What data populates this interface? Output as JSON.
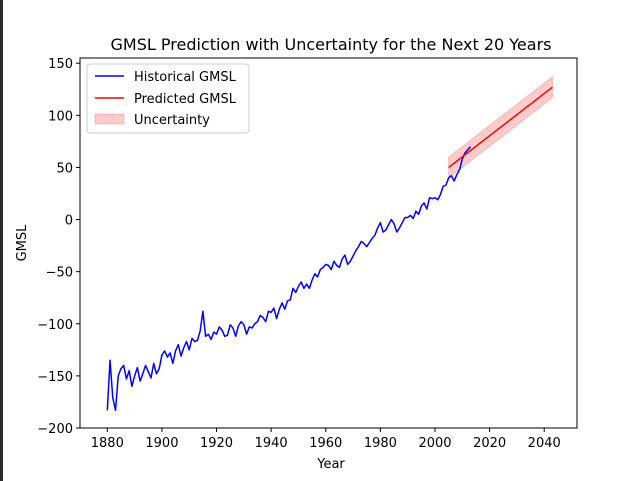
{
  "chart_data": {
    "type": "line",
    "title": "GMSL Prediction with Uncertainty for the Next 20 Years",
    "xlabel": "Year",
    "ylabel": "GMSL",
    "xlim": [
      1870,
      2052
    ],
    "ylim": [
      -200,
      155
    ],
    "xticks": [
      1880,
      1900,
      1920,
      1940,
      1960,
      1980,
      2000,
      2020,
      2040
    ],
    "yticks": [
      -200,
      -150,
      -100,
      -50,
      0,
      50,
      100,
      150
    ],
    "legend": "top-left",
    "grid": false,
    "series": [
      {
        "name": "Historical GMSL",
        "color": "#0000ff",
        "x": [
          1880,
          1881,
          1882,
          1883,
          1884,
          1885,
          1886,
          1887,
          1888,
          1889,
          1890,
          1891,
          1892,
          1893,
          1894,
          1895,
          1896,
          1897,
          1898,
          1899,
          1900,
          1901,
          1902,
          1903,
          1904,
          1905,
          1906,
          1907,
          1908,
          1909,
          1910,
          1911,
          1912,
          1913,
          1914,
          1915,
          1916,
          1917,
          1918,
          1919,
          1920,
          1921,
          1922,
          1923,
          1924,
          1925,
          1926,
          1927,
          1928,
          1929,
          1930,
          1931,
          1932,
          1933,
          1934,
          1935,
          1936,
          1937,
          1938,
          1939,
          1940,
          1941,
          1942,
          1943,
          1944,
          1945,
          1946,
          1947,
          1948,
          1949,
          1950,
          1951,
          1952,
          1953,
          1954,
          1955,
          1956,
          1957,
          1958,
          1959,
          1960,
          1961,
          1962,
          1963,
          1964,
          1965,
          1966,
          1967,
          1968,
          1969,
          1970,
          1971,
          1972,
          1973,
          1974,
          1975,
          1976,
          1977,
          1978,
          1979,
          1980,
          1981,
          1982,
          1983,
          1984,
          1985,
          1986,
          1987,
          1988,
          1989,
          1990,
          1991,
          1992,
          1993,
          1994,
          1995,
          1996,
          1997,
          1998,
          1999,
          2000,
          2001,
          2002,
          2003,
          2004,
          2005,
          2006,
          2007,
          2008,
          2009,
          2010,
          2011,
          2012,
          2013
        ],
        "y": [
          -183,
          -135,
          -171,
          -183,
          -150,
          -143,
          -140,
          -153,
          -145,
          -160,
          -150,
          -142,
          -155,
          -148,
          -140,
          -146,
          -152,
          -138,
          -148,
          -143,
          -130,
          -126,
          -132,
          -128,
          -138,
          -126,
          -120,
          -131,
          -123,
          -117,
          -125,
          -114,
          -117,
          -116,
          -107,
          -88,
          -112,
          -110,
          -115,
          -108,
          -110,
          -103,
          -106,
          -112,
          -111,
          -101,
          -104,
          -112,
          -102,
          -98,
          -101,
          -110,
          -103,
          -104,
          -100,
          -98,
          -92,
          -94,
          -98,
          -88,
          -89,
          -85,
          -95,
          -86,
          -80,
          -86,
          -78,
          -77,
          -66,
          -70,
          -64,
          -60,
          -66,
          -62,
          -66,
          -58,
          -52,
          -55,
          -48,
          -46,
          -43,
          -44,
          -48,
          -40,
          -44,
          -46,
          -38,
          -34,
          -43,
          -40,
          -35,
          -30,
          -26,
          -21,
          -23,
          -26,
          -22,
          -18,
          -15,
          -8,
          -3,
          -12,
          -10,
          -5,
          0,
          -4,
          -12,
          -8,
          -3,
          2,
          2,
          4,
          1,
          8,
          5,
          13,
          16,
          10,
          21,
          20,
          21,
          19,
          24,
          32,
          33,
          40,
          42,
          37,
          43,
          48,
          58,
          64,
          67,
          70
        ]
      },
      {
        "name": "Predicted GMSL",
        "color": "#ff0000",
        "x": [
          2005,
          2043
        ],
        "y": [
          50,
          127
        ]
      }
    ],
    "band": {
      "name": "Uncertainty",
      "color": "#ff0000",
      "x": [
        2005,
        2043
      ],
      "lower": [
        40,
        117
      ],
      "upper": [
        60,
        137
      ]
    }
  }
}
